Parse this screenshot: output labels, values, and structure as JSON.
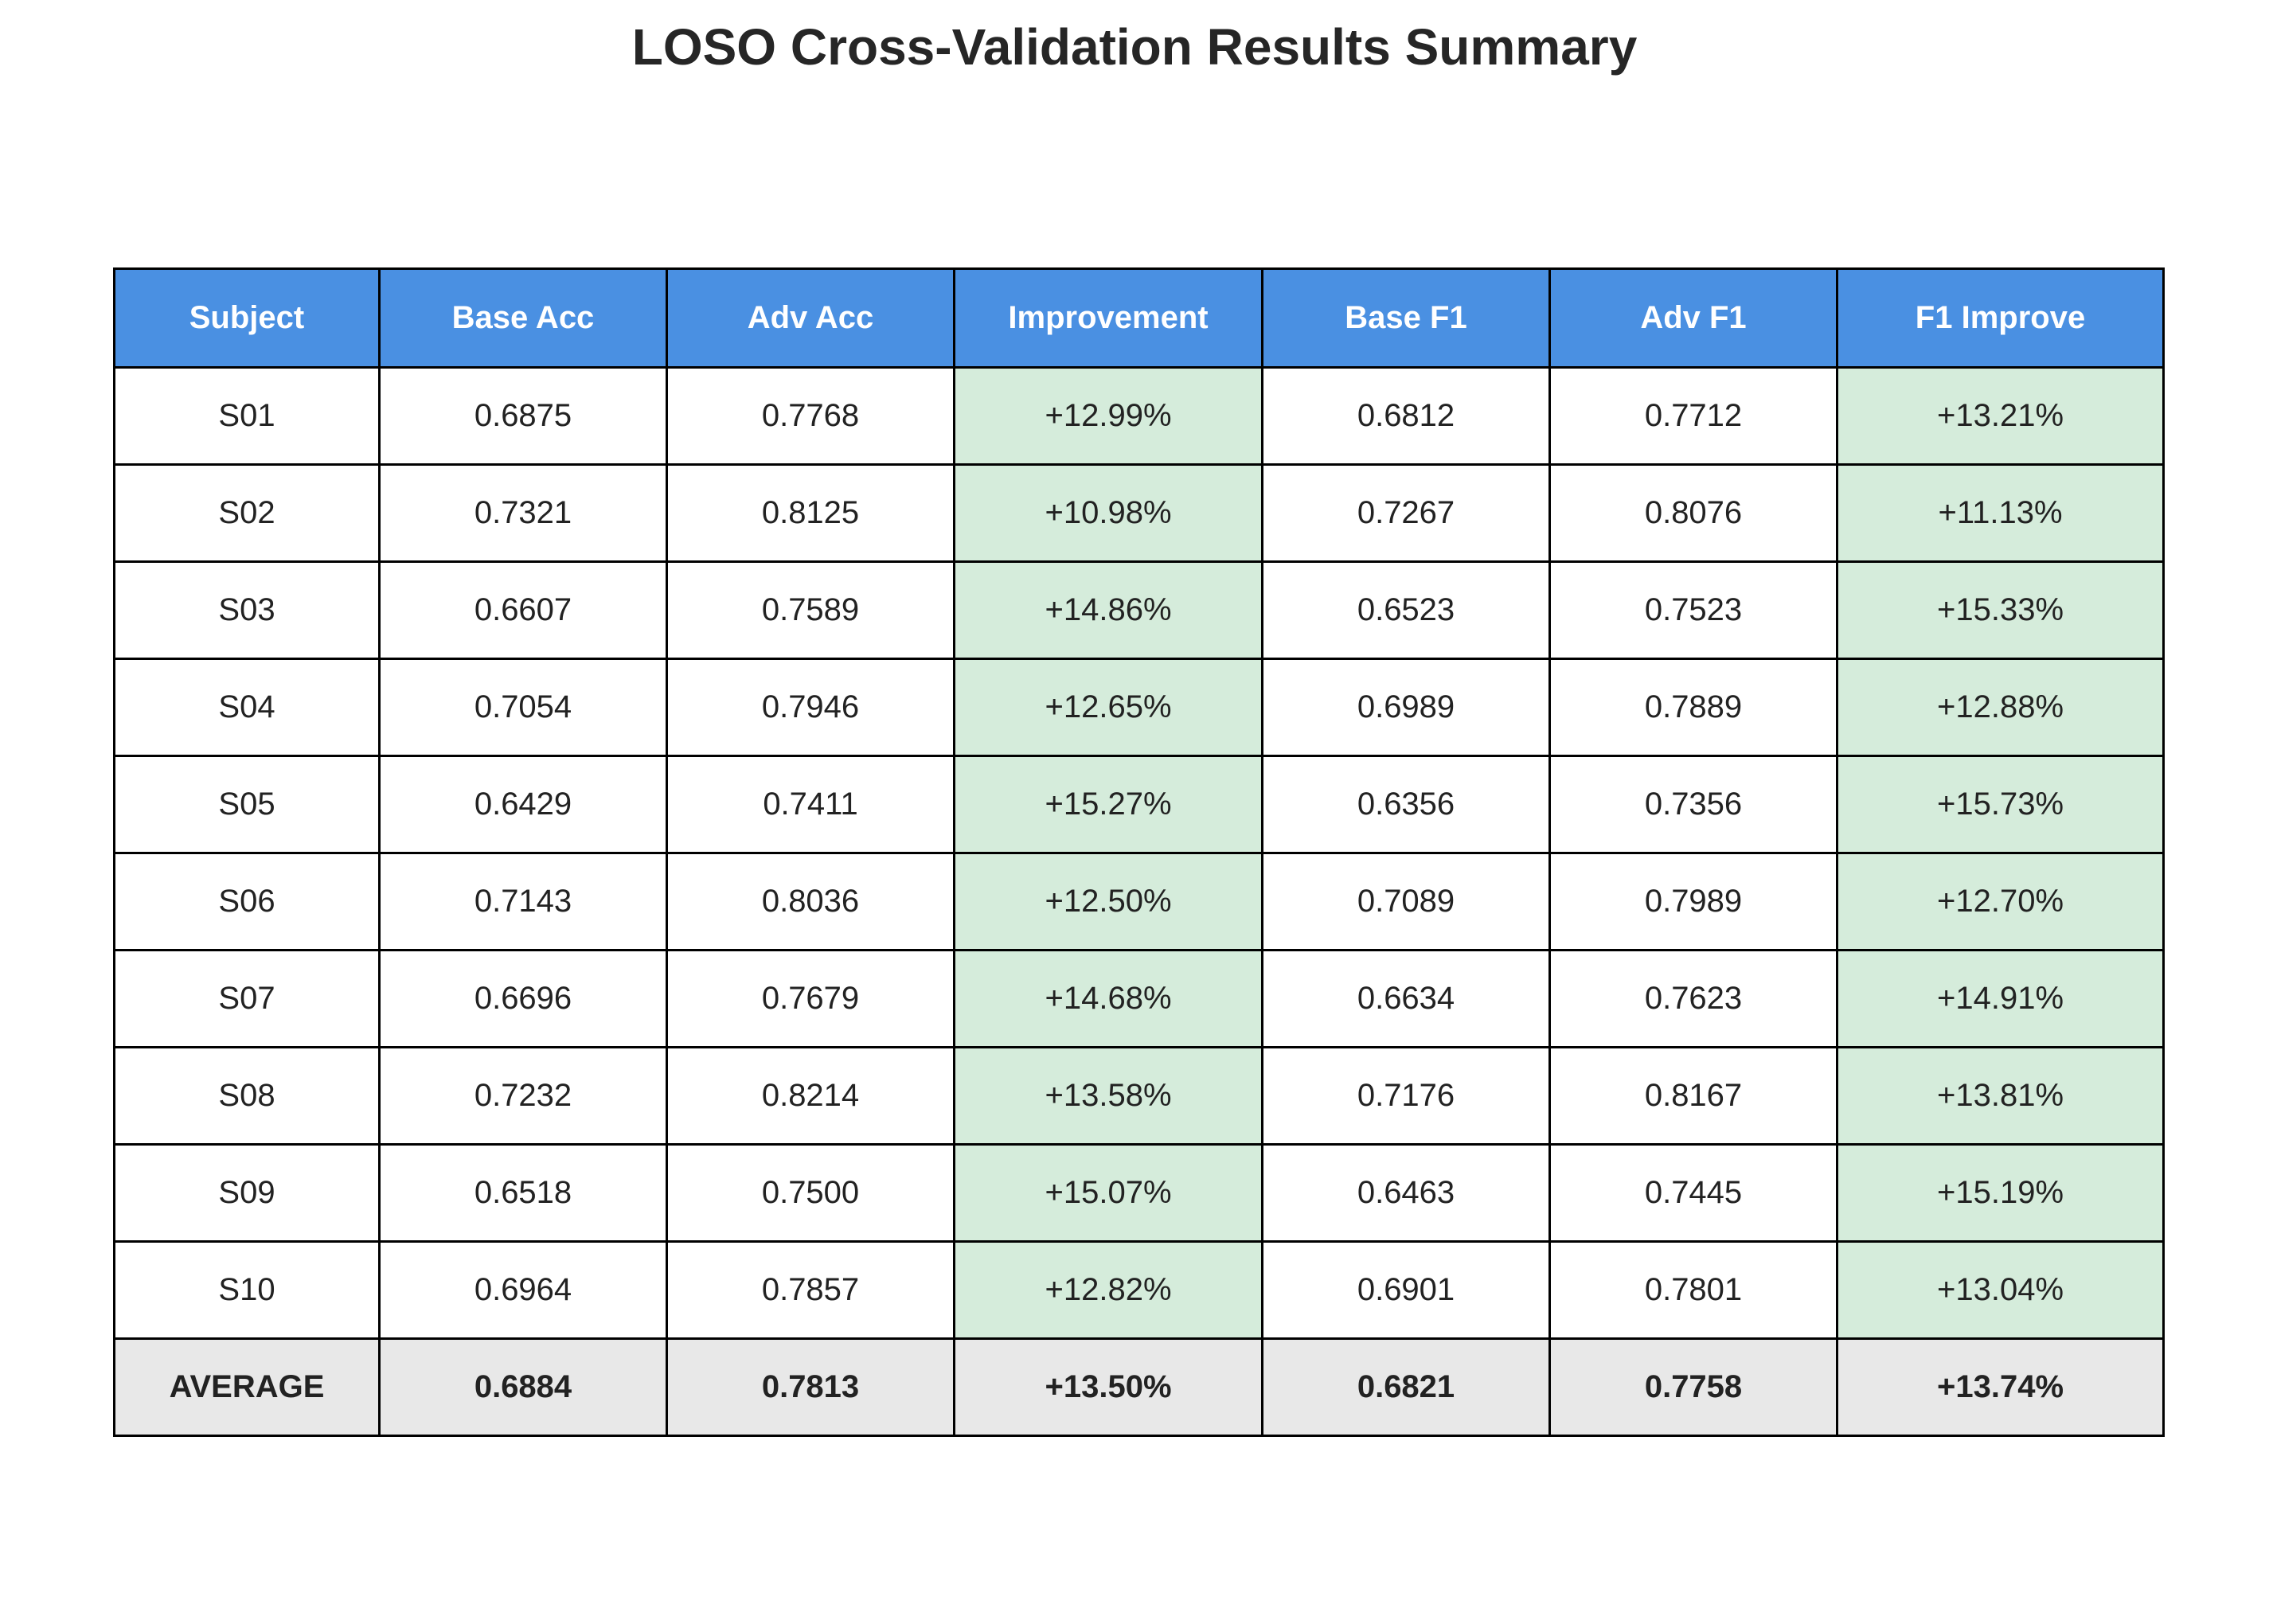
{
  "chart_data": {
    "type": "table",
    "title": "LOSO Cross-Validation Results Summary",
    "columns": [
      "Subject",
      "Base Acc",
      "Adv Acc",
      "Improvement",
      "Base F1",
      "Adv F1",
      "F1 Improve"
    ],
    "rows": [
      [
        "S01",
        "0.6875",
        "0.7768",
        "+12.99%",
        "0.6812",
        "0.7712",
        "+13.21%"
      ],
      [
        "S02",
        "0.7321",
        "0.8125",
        "+10.98%",
        "0.7267",
        "0.8076",
        "+11.13%"
      ],
      [
        "S03",
        "0.6607",
        "0.7589",
        "+14.86%",
        "0.6523",
        "0.7523",
        "+15.33%"
      ],
      [
        "S04",
        "0.7054",
        "0.7946",
        "+12.65%",
        "0.6989",
        "0.7889",
        "+12.88%"
      ],
      [
        "S05",
        "0.6429",
        "0.7411",
        "+15.27%",
        "0.6356",
        "0.7356",
        "+15.73%"
      ],
      [
        "S06",
        "0.7143",
        "0.8036",
        "+12.50%",
        "0.7089",
        "0.7989",
        "+12.70%"
      ],
      [
        "S07",
        "0.6696",
        "0.7679",
        "+14.68%",
        "0.6634",
        "0.7623",
        "+14.91%"
      ],
      [
        "S08",
        "0.7232",
        "0.8214",
        "+13.58%",
        "0.7176",
        "0.8167",
        "+13.81%"
      ],
      [
        "S09",
        "0.6518",
        "0.7500",
        "+15.07%",
        "0.6463",
        "0.7445",
        "+15.19%"
      ],
      [
        "S10",
        "0.6964",
        "0.7857",
        "+12.82%",
        "0.6901",
        "0.7801",
        "+13.04%"
      ]
    ],
    "average_row": [
      "AVERAGE",
      "0.6884",
      "0.7813",
      "+13.50%",
      "0.6821",
      "0.7758",
      "+13.74%"
    ],
    "colors": {
      "header": "#4a90e2",
      "header_text": "#ffffff",
      "improvement_cell": "#d5ecdb",
      "average_row": "#e8e8e8",
      "border": "#000000"
    },
    "highlighted_columns": [
      "Improvement",
      "F1 Improve"
    ]
  }
}
